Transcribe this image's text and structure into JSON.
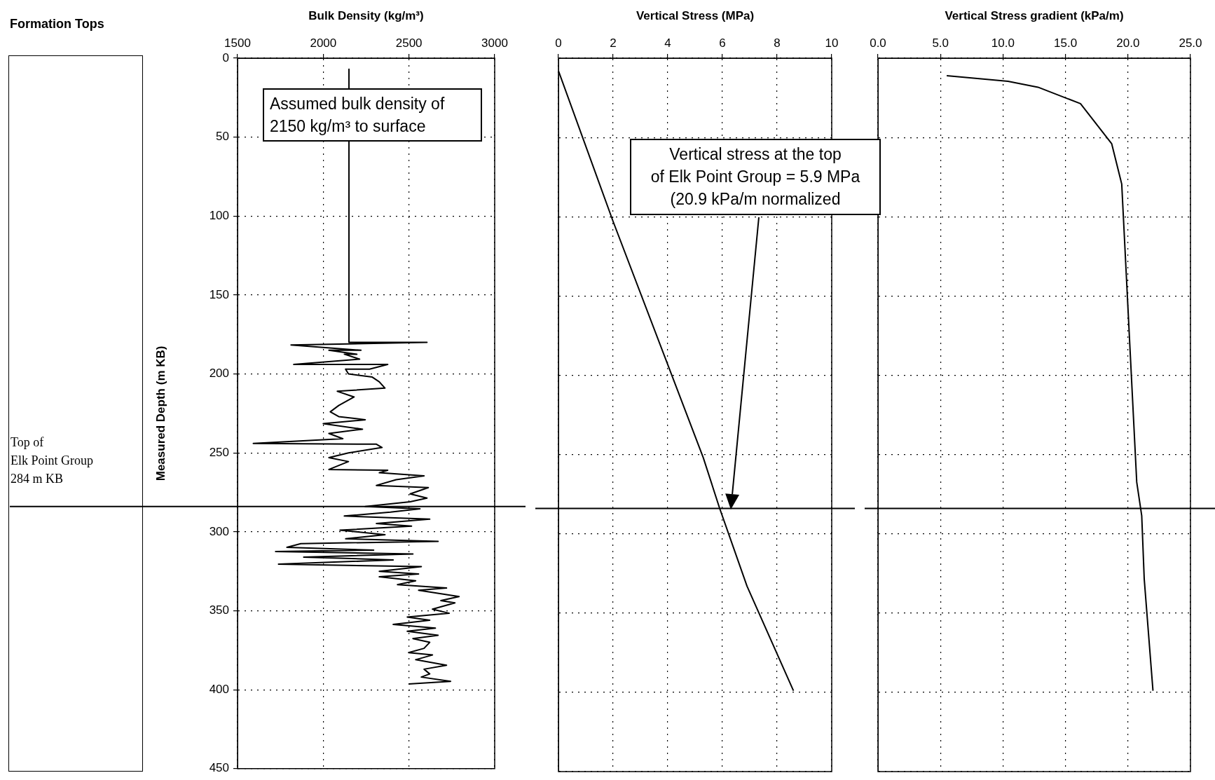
{
  "chart_data": [
    {
      "type": "other",
      "title": "Formation Tops",
      "annotations": [
        "Top of\nElk Point Group\n284 m KB"
      ]
    },
    {
      "type": "line",
      "orientation": "horizontal",
      "xlabel": "Bulk Density (kg/m³)",
      "ylabel": "Measured Depth (m KB)",
      "color": "#000000",
      "marker": "none",
      "grid": true,
      "xlim": [
        1500,
        3000
      ],
      "xticks": [
        1500,
        2000,
        2500,
        3000
      ],
      "ylim": [
        450,
        0
      ],
      "yticks": [
        0,
        50,
        100,
        150,
        200,
        250,
        300,
        350,
        400,
        450
      ],
      "x": [
        7,
        180,
        180,
        181.7,
        185,
        185,
        187.5,
        187.5,
        190.6,
        194,
        194,
        197,
        197,
        200,
        202,
        205,
        209,
        211,
        214.6,
        220,
        224,
        227,
        229,
        231.5,
        235,
        237.7,
        241,
        244,
        244.5,
        246.6,
        250,
        253,
        255.5,
        260.5,
        261,
        262.6,
        264.5,
        267,
        270.6,
        272,
        276,
        278.6,
        281,
        284,
        285.4,
        287.5,
        290,
        292,
        294.7,
        296.4,
        299,
        301.8,
        304.4,
        306,
        307.5,
        309.8,
        311.6,
        312.5,
        314,
        316,
        317.8,
        320.5,
        322,
        325,
        326.7,
        328.5,
        331,
        333.5,
        335.6,
        337,
        341,
        343.6,
        345,
        349,
        351.6,
        354,
        356,
        358.7,
        361,
        363,
        365.5,
        367.6,
        370,
        373.8,
        376.5,
        378,
        381,
        384.5,
        387,
        390,
        392,
        394.7,
        396.4
      ],
      "values": [
        2150,
        2150,
        2605,
        1812,
        2220,
        2033,
        2196,
        2123,
        2212,
        1828,
        2376,
        2270,
        2130,
        2147,
        2286,
        2327,
        2360,
        2082,
        2180,
        2090,
        2041,
        2090,
        2245,
        2000,
        2229,
        2033,
        2114,
        1592,
        2310,
        2343,
        2147,
        2033,
        2147,
        2033,
        2376,
        2327,
        2588,
        2425,
        2310,
        2613,
        2507,
        2605,
        2507,
        2245,
        2564,
        2392,
        2123,
        2621,
        2310,
        2515,
        2098,
        2360,
        2131,
        2670,
        1869,
        1788,
        2294,
        1722,
        2523,
        1886,
        2408,
        1739,
        2572,
        2327,
        2556,
        2327,
        2539,
        2433,
        2719,
        2556,
        2792,
        2686,
        2768,
        2637,
        2735,
        2490,
        2621,
        2408,
        2654,
        2490,
        2670,
        2523,
        2621,
        2588,
        2498,
        2637,
        2539,
        2719,
        2588,
        2621,
        2572,
        2743,
        2498
      ],
      "ref_lines": [
        {
          "axis": "y",
          "value": 284
        }
      ],
      "annotations": [
        "Assumed bulk density of\n2150 kg/m³ to surface"
      ]
    },
    {
      "type": "line",
      "orientation": "horizontal",
      "xlabel": "Vertical Stress (MPa)",
      "color": "#000000",
      "marker": "none",
      "grid": true,
      "tick_labels": "x",
      "xlim": [
        0,
        10
      ],
      "xticks": [
        0,
        2,
        4,
        6,
        8,
        10
      ],
      "ylim": [
        450,
        0
      ],
      "yticks": [
        0,
        50,
        100,
        150,
        200,
        250,
        300,
        350,
        400,
        450
      ],
      "x": [
        8,
        103,
        252,
        284,
        333,
        399
      ],
      "values": [
        0,
        2.0,
        5.3,
        5.9,
        6.9,
        8.6
      ],
      "ref_lines": [
        {
          "axis": "y",
          "value": 284
        }
      ],
      "annotations": [
        "Vertical stress at the top\nof Elk Point Group = 5.9 MPa\n(20.9 kPa/m normalized"
      ]
    },
    {
      "type": "line",
      "orientation": "horizontal",
      "xlabel": "Vertical Stress gradient (kPa/m)",
      "color": "#000000",
      "marker": "none",
      "grid": true,
      "tick_labels": "x",
      "xlim": [
        0,
        25
      ],
      "xticks": [
        {
          "value": 0,
          "label": "0.0"
        },
        {
          "value": 5,
          "label": "5.0"
        },
        {
          "value": 10,
          "label": "10.0"
        },
        {
          "value": 15,
          "label": "15.0"
        },
        {
          "value": 20,
          "label": "20.0"
        },
        {
          "value": 25,
          "label": "25.0"
        }
      ],
      "ylim": [
        450,
        0
      ],
      "yticks": [
        0,
        50,
        100,
        150,
        200,
        250,
        300,
        350,
        400,
        450
      ],
      "x": [
        11,
        14.6,
        18.3,
        28.7,
        54,
        79.4,
        267.4,
        288.6,
        328.5,
        399
      ],
      "values": [
        5.5,
        10.4,
        12.8,
        16.2,
        18.7,
        19.5,
        20.7,
        21.1,
        21.3,
        22.0
      ],
      "ref_lines": [
        {
          "axis": "y",
          "value": 284
        }
      ]
    }
  ]
}
